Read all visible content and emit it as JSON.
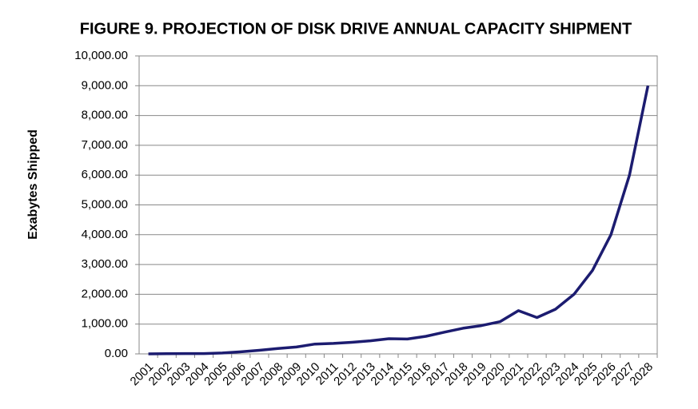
{
  "chart_data": {
    "type": "line",
    "title": "FIGURE 9.  PROJECTION OF DISK DRIVE ANNUAL CAPACITY SHIPMENT",
    "y_label": "Exabytes Shipped",
    "categories": [
      "2001",
      "2002",
      "2003",
      "2004",
      "2005",
      "2006",
      "2007",
      "2008",
      "2009",
      "2010",
      "2011",
      "2012",
      "2013",
      "2014",
      "2015",
      "2016",
      "2017",
      "2018",
      "2019",
      "2020",
      "2021",
      "2022",
      "2023",
      "2024",
      "2025",
      "2026",
      "2027",
      "2028"
    ],
    "values": [
      0,
      5,
      10,
      10,
      30,
      70,
      120,
      180,
      230,
      330,
      350,
      390,
      440,
      510,
      500,
      590,
      730,
      860,
      950,
      1080,
      1450,
      1220,
      1500,
      2000,
      2800,
      4000,
      6000,
      9000
    ],
    "color": "#1c1c70",
    "ylim": [
      0,
      10000
    ],
    "yticks": [
      {
        "value": 0,
        "label": "0.00"
      },
      {
        "value": 1000,
        "label": "1,000.00"
      },
      {
        "value": 2000,
        "label": "2,000.00"
      },
      {
        "value": 3000,
        "label": "3,000.00"
      },
      {
        "value": 4000,
        "label": "4,000.00"
      },
      {
        "value": 5000,
        "label": "5,000.00"
      },
      {
        "value": 6000,
        "label": "6,000.00"
      },
      {
        "value": 7000,
        "label": "7,000.00"
      },
      {
        "value": 8000,
        "label": "8,000.00"
      },
      {
        "value": 9000,
        "label": "9,000.00"
      },
      {
        "value": 10000,
        "label": "10,000.00"
      }
    ],
    "grid": true
  }
}
